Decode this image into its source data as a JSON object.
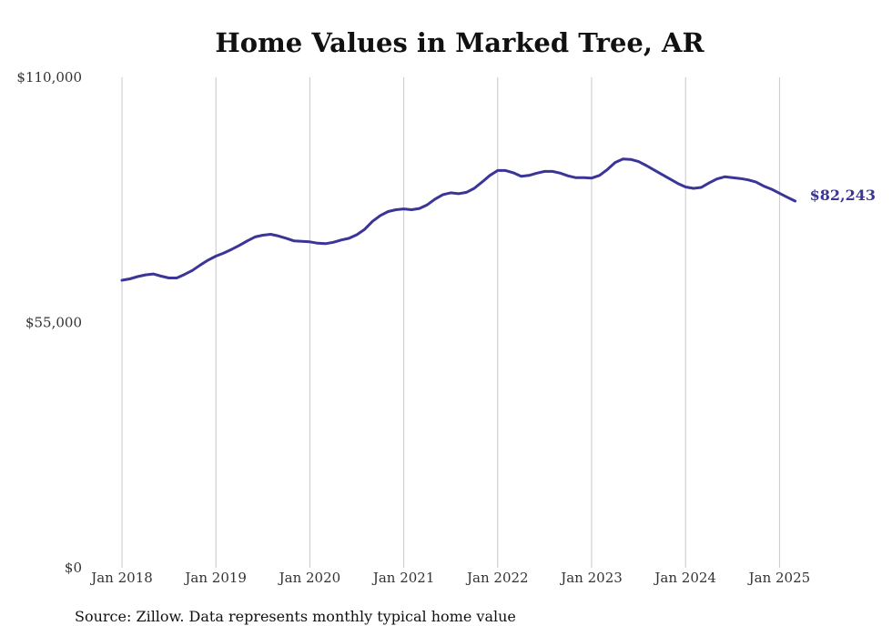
{
  "chart_data": {
    "type": "line",
    "title": "Home Values in Marked Tree, AR",
    "ylim": [
      0,
      110000
    ],
    "yticks": [
      0,
      55000,
      110000
    ],
    "ytick_labels": [
      "$0",
      "$55,000",
      "$110,000"
    ],
    "xticks": [
      "2018-01",
      "2019-01",
      "2020-01",
      "2021-01",
      "2022-01",
      "2023-01",
      "2024-01",
      "2025-01"
    ],
    "xtick_labels": [
      "Jan 2018",
      "Jan 2019",
      "Jan 2020",
      "Jan 2021",
      "Jan 2022",
      "Jan 2023",
      "Jan 2024",
      "Jan 2025"
    ],
    "grid": "vertical",
    "line_color": "#3a3597",
    "end_label": "$82,243",
    "source": "Source: Zillow. Data represents monthly typical home value",
    "series": [
      {
        "x": [
          "2018-01",
          "2018-02",
          "2018-03",
          "2018-04",
          "2018-05",
          "2018-06",
          "2018-07",
          "2018-08",
          "2018-09",
          "2018-10",
          "2018-11",
          "2018-12",
          "2019-01",
          "2019-02",
          "2019-03",
          "2019-04",
          "2019-05",
          "2019-06",
          "2019-07",
          "2019-08",
          "2019-09",
          "2019-10",
          "2019-11",
          "2019-12",
          "2020-01",
          "2020-02",
          "2020-03",
          "2020-04",
          "2020-05",
          "2020-06",
          "2020-07",
          "2020-08",
          "2020-09",
          "2020-10",
          "2020-11",
          "2020-12",
          "2021-01",
          "2021-02",
          "2021-03",
          "2021-04",
          "2021-05",
          "2021-06",
          "2021-07",
          "2021-08",
          "2021-09",
          "2021-10",
          "2021-11",
          "2021-12",
          "2022-01",
          "2022-02",
          "2022-03",
          "2022-04",
          "2022-05",
          "2022-06",
          "2022-07",
          "2022-08",
          "2022-09",
          "2022-10",
          "2022-11",
          "2022-12",
          "2023-01",
          "2023-02",
          "2023-03",
          "2023-04",
          "2023-05",
          "2023-06",
          "2023-07",
          "2023-08",
          "2023-09",
          "2023-10",
          "2023-11",
          "2023-12",
          "2024-01",
          "2024-02",
          "2024-03",
          "2024-04",
          "2024-05",
          "2024-06",
          "2024-07",
          "2024-08",
          "2024-09",
          "2024-10",
          "2024-11",
          "2024-12",
          "2025-01",
          "2025-02",
          "2025-03"
        ],
        "values": [
          64500,
          64800,
          65300,
          65700,
          65900,
          65400,
          65000,
          65000,
          65800,
          66700,
          67900,
          69000,
          69900,
          70600,
          71400,
          72300,
          73300,
          74200,
          74600,
          74800,
          74400,
          73900,
          73300,
          73200,
          73100,
          72800,
          72700,
          73000,
          73500,
          73900,
          74700,
          75900,
          77700,
          79000,
          79900,
          80300,
          80500,
          80300,
          80600,
          81400,
          82700,
          83700,
          84100,
          83900,
          84200,
          85100,
          86500,
          88000,
          89100,
          89100,
          88600,
          87800,
          88000,
          88500,
          88900,
          88900,
          88500,
          87900,
          87500,
          87500,
          87400,
          88000,
          89300,
          90900,
          91700,
          91600,
          91100,
          90200,
          89200,
          88200,
          87200,
          86200,
          85400,
          85100,
          85300,
          86300,
          87200,
          87700,
          87500,
          87300,
          87000,
          86500,
          85600,
          84900,
          84000,
          83100,
          82243
        ]
      }
    ]
  }
}
